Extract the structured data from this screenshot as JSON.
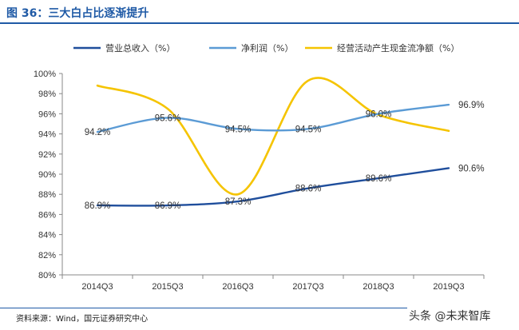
{
  "figure_title": "图 36：三大白占比逐渐提升",
  "source_note": "资料来源：Wind，国元证券研究中心",
  "watermark": "头条 @未来智库",
  "chart_data": {
    "type": "line",
    "title": "",
    "xlabel": "",
    "ylabel": "",
    "categories": [
      "2014Q3",
      "2015Q3",
      "2016Q3",
      "2017Q3",
      "2018Q3",
      "2019Q3"
    ],
    "ylim": [
      80,
      100
    ],
    "y_ticks": [
      "80%",
      "82%",
      "84%",
      "86%",
      "88%",
      "90%",
      "92%",
      "94%",
      "96%",
      "98%",
      "100%"
    ],
    "grid": false,
    "legend_placement": "top",
    "series": [
      {
        "name": "营业总收入（%）",
        "color": "#1f4e9c",
        "values": [
          86.9,
          86.9,
          87.3,
          88.6,
          89.6,
          90.6
        ],
        "labels": [
          "86.9%",
          "86.9%",
          "87.3%",
          "88.6%",
          "89.6%",
          "90.6%"
        ]
      },
      {
        "name": "净利润（%）",
        "color": "#5b9bd5",
        "values": [
          94.2,
          95.6,
          94.5,
          94.5,
          96.0,
          96.9
        ],
        "labels": [
          "94.2%",
          "95.6%",
          "94.5%",
          "94.5%",
          "96.0%",
          "96.9%"
        ]
      },
      {
        "name": "经营活动产生现金流净额（%）",
        "color": "#f5c400",
        "values": [
          98.8,
          96.5,
          88.0,
          99.3,
          95.9,
          94.3
        ],
        "labels": []
      }
    ]
  }
}
